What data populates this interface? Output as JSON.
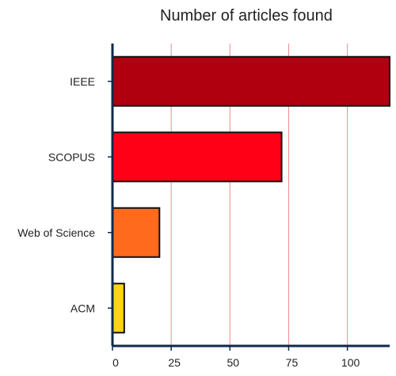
{
  "chart_data": {
    "type": "bar",
    "orientation": "horizontal",
    "title": "Number of articles found",
    "xlabel": "",
    "ylabel": "",
    "categories": [
      "IEEE",
      "SCOPUS",
      "Web of Science",
      "ACM"
    ],
    "values": [
      118,
      72,
      20,
      5
    ],
    "bar_colors": [
      "#b00010",
      "#ff0016",
      "#ff6a1c",
      "#ffd316"
    ],
    "bar_outline_color": "#111111",
    "xlim": [
      0,
      118
    ],
    "x_ticks": [
      0,
      25,
      50,
      75,
      100
    ],
    "x_tick_labels": [
      "0",
      "25",
      "50",
      "75",
      "100"
    ],
    "grid": "vertical",
    "grid_color": "#f08a8a",
    "axis_color": "#0f2a4a",
    "legend": "none"
  }
}
